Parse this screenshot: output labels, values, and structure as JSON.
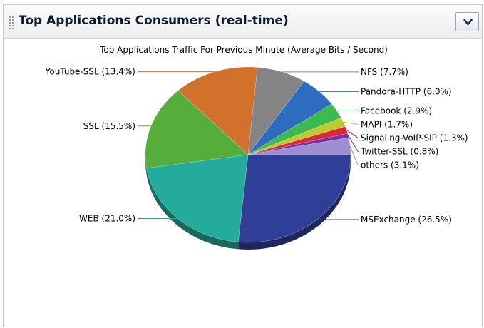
{
  "widget": {
    "title": "Top Applications Consumers (real-time)"
  },
  "icons": {
    "menu": "chevron-down-icon",
    "grip": "drag-handle-icon"
  },
  "chart_data": {
    "type": "pie",
    "title": "Top Applications Traffic For Previous Minute (Average Bits / Second)",
    "slices": [
      {
        "name": "MSExchange",
        "value": 26.5,
        "label": "MSExchange (26.5%)",
        "color": "#2f3f97"
      },
      {
        "name": "WEB",
        "value": 21.0,
        "label": "WEB (21.0%)",
        "color": "#24ab9b"
      },
      {
        "name": "SSL",
        "value": 15.5,
        "label": "SSL (15.5%)",
        "color": "#56ad3b"
      },
      {
        "name": "YouTube-SSL",
        "value": 13.4,
        "label": "YouTube-SSL (13.4%)",
        "color": "#d2712b"
      },
      {
        "name": "NFS",
        "value": 7.7,
        "label": "NFS (7.7%)",
        "color": "#858585"
      },
      {
        "name": "Pandora-HTTP",
        "value": 6.0,
        "label": "Pandora-HTTP (6.0%)",
        "color": "#2e6cbf"
      },
      {
        "name": "Facebook",
        "value": 2.9,
        "label": "Facebook (2.9%)",
        "color": "#3cb950"
      },
      {
        "name": "MAPI",
        "value": 1.7,
        "label": "MAPI (1.7%)",
        "color": "#bfc931"
      },
      {
        "name": "Signaling-VoIP-SIP",
        "value": 1.3,
        "label": "Signaling-VoIP-SIP (1.3%)",
        "color": "#dc2738"
      },
      {
        "name": "Twitter-SSL",
        "value": 0.8,
        "label": "Twitter-SSL (0.8%)",
        "color": "#7b2fa7"
      },
      {
        "name": "others",
        "value": 3.1,
        "label": "others (3.1%)",
        "color": "#9b8fd1"
      }
    ],
    "legend": "none",
    "labels": "outside with leader lines"
  }
}
